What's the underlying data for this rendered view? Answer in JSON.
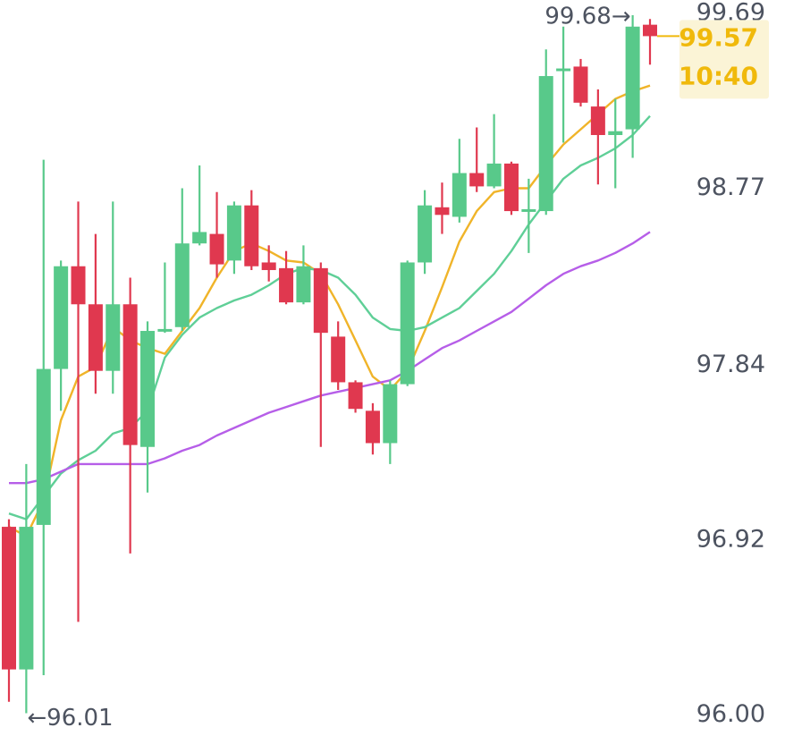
{
  "chart_data": {
    "type": "candlestick",
    "open": [
      96.99,
      96.24,
      97.0,
      97.82,
      98.36,
      98.16,
      97.81,
      98.16,
      97.41,
      98.02,
      98.04,
      98.48,
      98.53,
      98.39,
      98.68,
      98.38,
      98.35,
      98.17,
      98.35,
      97.99,
      97.75,
      97.6,
      97.43,
      97.74,
      98.38,
      98.67,
      98.62,
      98.85,
      98.78,
      98.9,
      98.65,
      98.65,
      99.39,
      99.41,
      99.2,
      99.05,
      99.08,
      99.63
    ],
    "high": [
      97.03,
      97.32,
      98.92,
      98.39,
      98.7,
      98.53,
      98.7,
      98.3,
      98.07,
      98.38,
      98.77,
      98.89,
      98.75,
      98.7,
      98.76,
      98.47,
      98.44,
      98.47,
      98.38,
      98.07,
      97.76,
      97.64,
      97.76,
      98.39,
      98.76,
      98.8,
      99.03,
      99.09,
      99.16,
      98.91,
      98.82,
      99.5,
      99.62,
      99.45,
      99.29,
      99.24,
      99.68,
      99.66
    ],
    "low": [
      96.07,
      96.01,
      96.21,
      97.6,
      96.49,
      97.69,
      97.69,
      96.85,
      97.17,
      98.01,
      98.02,
      98.47,
      98.3,
      98.32,
      98.34,
      98.28,
      98.16,
      98.16,
      97.41,
      97.71,
      97.59,
      97.37,
      97.32,
      97.73,
      98.32,
      98.53,
      98.59,
      98.75,
      98.77,
      98.63,
      98.43,
      98.63,
      99.01,
      99.2,
      98.79,
      98.77,
      98.93,
      99.42
    ],
    "close": [
      96.24,
      96.99,
      97.82,
      98.36,
      98.16,
      97.81,
      98.16,
      97.42,
      98.02,
      98.03,
      98.48,
      98.54,
      98.37,
      98.68,
      98.36,
      98.34,
      98.17,
      98.36,
      98.01,
      97.75,
      97.61,
      97.43,
      97.74,
      98.38,
      98.68,
      98.63,
      98.85,
      98.78,
      98.9,
      98.65,
      98.66,
      99.36,
      99.4,
      99.22,
      99.05,
      99.07,
      99.62,
      99.57
    ],
    "up_color": "#58c98a",
    "down_color": "#e0384f",
    "lines": [
      {
        "color": "#f0b429",
        "values": [
          96.99,
          96.94,
          97.13,
          97.55,
          97.78,
          97.83,
          98.04,
          97.97,
          97.93,
          97.9,
          98.02,
          98.14,
          98.3,
          98.44,
          98.48,
          98.44,
          98.39,
          98.38,
          98.32,
          98.16,
          97.97,
          97.78,
          97.71,
          97.81,
          98.02,
          98.25,
          98.49,
          98.65,
          98.75,
          98.77,
          98.77,
          98.89,
          99.0,
          99.08,
          99.16,
          99.24,
          99.28,
          99.31
        ]
      },
      {
        "color": "#5fcf97",
        "values": [
          97.06,
          97.03,
          97.15,
          97.27,
          97.34,
          97.39,
          97.48,
          97.51,
          97.6,
          97.88,
          98.0,
          98.09,
          98.14,
          98.18,
          98.21,
          98.26,
          98.32,
          98.35,
          98.34,
          98.3,
          98.21,
          98.09,
          98.03,
          98.02,
          98.04,
          98.09,
          98.14,
          98.23,
          98.32,
          98.44,
          98.58,
          98.7,
          98.82,
          98.89,
          98.93,
          98.98,
          99.05,
          99.15
        ]
      },
      {
        "color": "#b65ee8",
        "values": [
          97.22,
          97.22,
          97.24,
          97.28,
          97.32,
          97.32,
          97.32,
          97.32,
          97.32,
          97.35,
          97.39,
          97.42,
          97.47,
          97.51,
          97.55,
          97.59,
          97.62,
          97.65,
          97.68,
          97.7,
          97.72,
          97.74,
          97.76,
          97.81,
          97.87,
          97.93,
          97.97,
          98.02,
          98.07,
          98.12,
          98.19,
          98.26,
          98.32,
          98.36,
          98.39,
          98.43,
          98.48,
          98.54
        ]
      }
    ],
    "ylim": [
      95.89,
      99.76
    ],
    "yticks": [
      {
        "value": 96,
        "label": "96.00"
      },
      96.92,
      97.84,
      98.77,
      99.69
    ],
    "high_label": "99.68→",
    "low_label": "←96.01",
    "last_price": 99.57,
    "last_price_label": "99.57",
    "countdown": "10:40",
    "last_price_color": "#f0b90b"
  }
}
